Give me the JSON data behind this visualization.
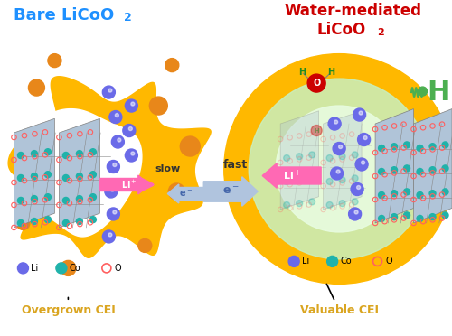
{
  "title_left": "Bare LiCoO₂",
  "title_right": "Water-mediated\nLiCoO₂",
  "title_left_color": "#1E90FF",
  "title_right_color": "#CC0000",
  "label_left": "Overgrown CEI",
  "label_right": "Valuable CEI",
  "label_color": "#DAA520",
  "yellow_color": "#FFB800",
  "yellow_dark": "#E8A000",
  "orange_spot_color": "#E8871A",
  "green_inner": "#90EE90",
  "green_inner_alpha": 0.5,
  "li_color": "#6A6AE8",
  "co_color": "#20B2AA",
  "o_color": "#FF6060",
  "slab_color": "#B0C4D8",
  "slab_edge_color": "#888888",
  "water_O_color": "#CC0000",
  "water_H_color": "#228B22",
  "slow_text_color": "#333333",
  "fast_text_color": "#333333",
  "li_arrow_color": "#FF69B4",
  "e_arrow_color": "#B0C4DE",
  "fig_width": 5.0,
  "fig_height": 3.72
}
